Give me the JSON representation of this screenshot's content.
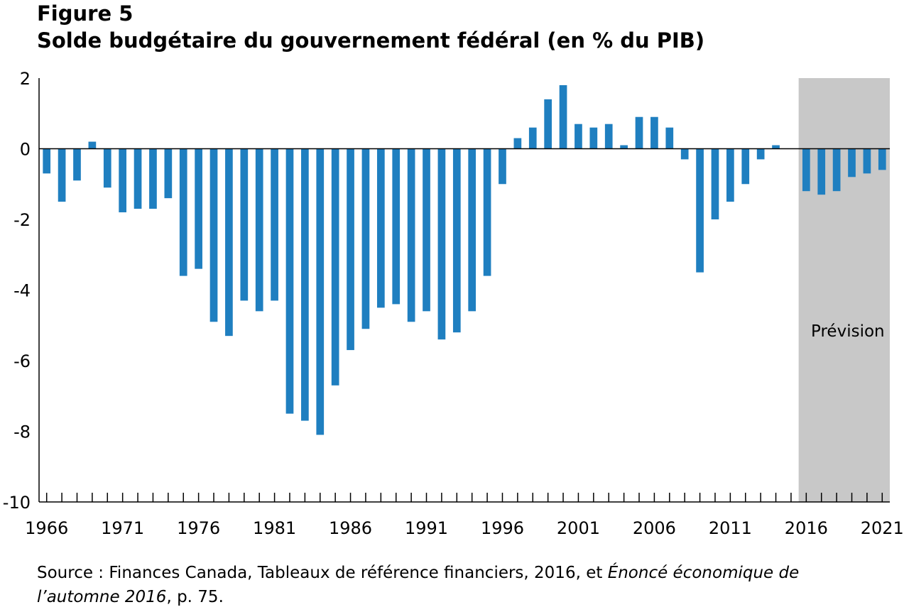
{
  "figure": {
    "label": "Figure 5",
    "title": "Solde budgétaire du gouvernement fédéral (en % du PIB)"
  },
  "colors": {
    "bar": "#1f7fc0",
    "forecast_band": "#c8c8c8",
    "axis": "#000000"
  },
  "chart_data": {
    "type": "bar",
    "title": "Solde budgétaire du gouvernement fédéral (en % du PIB)",
    "xlabel": "",
    "ylabel": "",
    "ylim": [
      -10,
      2
    ],
    "yticks": [
      2,
      0,
      -2,
      -4,
      -6,
      -8,
      -10
    ],
    "xtick_labels": [
      "1966",
      "1971",
      "1976",
      "1981",
      "1986",
      "1991",
      "1996",
      "2001",
      "2006",
      "2011",
      "2016",
      "2021"
    ],
    "grid": false,
    "forecast": {
      "label": "Prévision",
      "from": 2016,
      "to": 2021
    },
    "categories": [
      1966,
      1967,
      1968,
      1969,
      1970,
      1971,
      1972,
      1973,
      1974,
      1975,
      1976,
      1977,
      1978,
      1979,
      1980,
      1981,
      1982,
      1983,
      1984,
      1985,
      1986,
      1987,
      1988,
      1989,
      1990,
      1991,
      1992,
      1993,
      1994,
      1995,
      1996,
      1997,
      1998,
      1999,
      2000,
      2001,
      2002,
      2003,
      2004,
      2005,
      2006,
      2007,
      2008,
      2009,
      2010,
      2011,
      2012,
      2013,
      2014,
      2015,
      2016,
      2017,
      2018,
      2019,
      2020,
      2021
    ],
    "values": [
      -0.7,
      -1.5,
      -0.9,
      0.2,
      -1.1,
      -1.8,
      -1.7,
      -1.7,
      -1.4,
      -3.6,
      -3.4,
      -4.9,
      -5.3,
      -4.3,
      -4.6,
      -4.3,
      -7.5,
      -7.7,
      -8.1,
      -6.7,
      -5.7,
      -5.1,
      -4.5,
      -4.4,
      -4.9,
      -4.6,
      -5.4,
      -5.2,
      -4.6,
      -3.6,
      -1.0,
      0.3,
      0.6,
      1.4,
      1.8,
      0.7,
      0.6,
      0.7,
      0.1,
      0.9,
      0.9,
      0.6,
      -0.3,
      -3.5,
      -2.0,
      -1.5,
      -1.0,
      -0.3,
      0.1,
      0.0,
      -1.2,
      -1.3,
      -1.2,
      -0.8,
      -0.7,
      -0.6
    ]
  },
  "source": {
    "prefix": "Source : Finances Canada, Tableaux de référence financiers, 2016, et ",
    "title_italic": "Énoncé économique de l’automne 2016",
    "suffix": ", p. 75."
  }
}
